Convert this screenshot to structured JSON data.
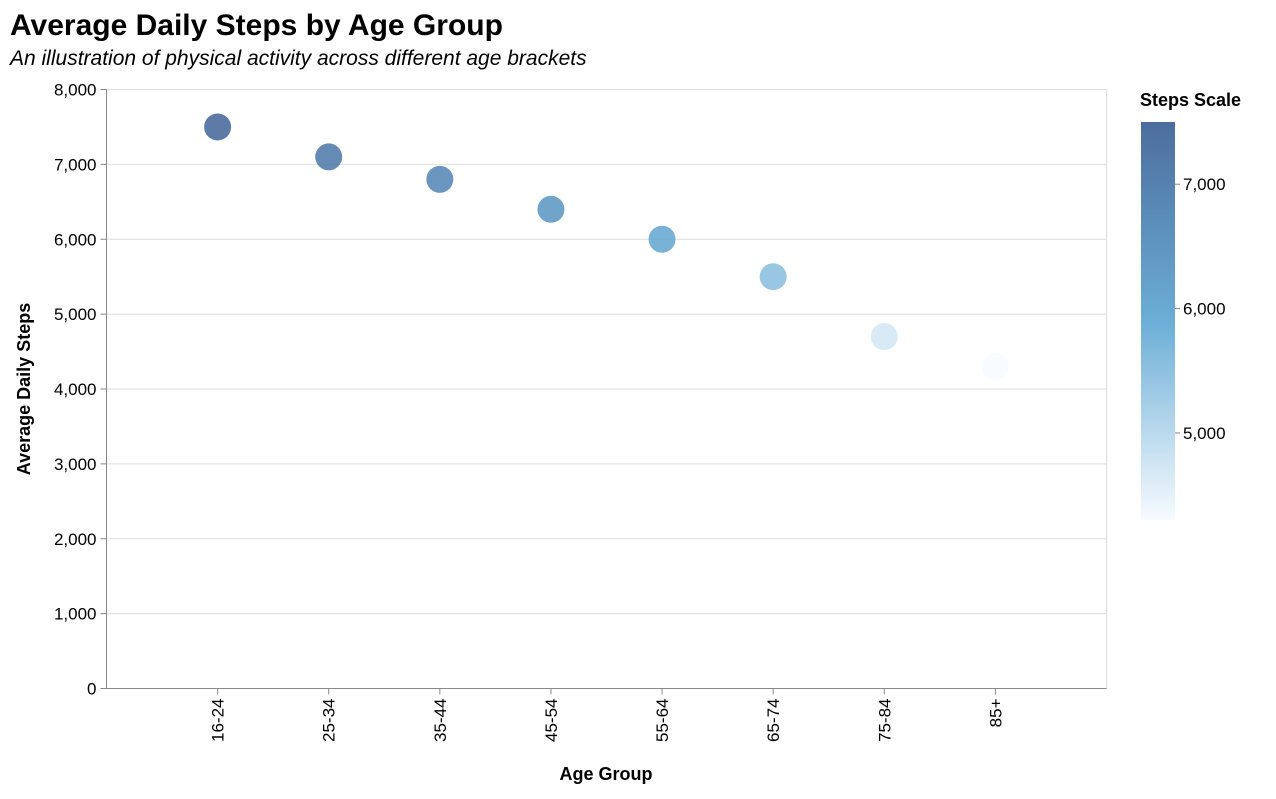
{
  "chart_data": {
    "type": "scatter",
    "title": "Average Daily Steps by Age Group",
    "subtitle": "An illustration of physical activity across different age brackets",
    "xlabel": "Age Group",
    "ylabel": "Average Daily Steps",
    "categories": [
      "16-24",
      "25-34",
      "35-44",
      "45-54",
      "55-64",
      "65-74",
      "75-84",
      "85+"
    ],
    "values": [
      7500,
      7100,
      6800,
      6400,
      6000,
      5500,
      4700,
      4300
    ],
    "ylim": [
      0,
      8000
    ],
    "yticks": [
      0,
      1000,
      2000,
      3000,
      4000,
      5000,
      6000,
      7000,
      8000
    ],
    "ytick_labels": [
      "0",
      "1,000",
      "2,000",
      "3,000",
      "4,000",
      "5,000",
      "6,000",
      "7,000",
      "8,000"
    ],
    "grid": "horizontal",
    "legend": {
      "title": "Steps Scale",
      "placement": "right",
      "domain": [
        4300,
        7500
      ],
      "ticks": [
        5000,
        6000,
        7000
      ],
      "tick_labels": [
        "5,000",
        "6,000",
        "7,000"
      ],
      "colors": [
        "#f7fbff",
        "#6baed6",
        "#4c6d9e"
      ]
    },
    "colors": {
      "grid": "#dddddd",
      "axis": "#888888",
      "point_opacity": 0.9
    }
  }
}
